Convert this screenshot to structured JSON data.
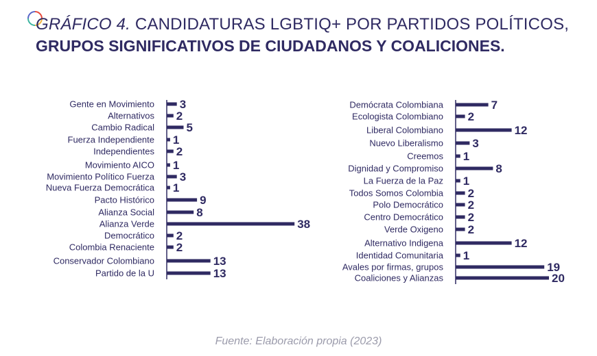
{
  "title": {
    "prefix": "GRÁFICO 4.",
    "line1": "CANDIDATURAS LGBTIQ+ POR PARTIDOS POLÍTICOS,",
    "line2": "GRUPOS SIGNIFICATIVOS DE CIUDADANOS Y COALICIONES."
  },
  "source": "Fuente: Elaboración propia (2023)",
  "colors": {
    "bar": "#2f2a62",
    "text": "#2f2a62",
    "source": "#9b9bab"
  },
  "chart_data": [
    {
      "type": "bar",
      "orientation": "horizontal",
      "categories": [
        "Gente en Movimiento",
        "Alternativos",
        "Cambio Radical",
        "Fuerza Independiente",
        "Independientes",
        "Movimiento AICO",
        "Movimiento Político Fuerza",
        "Nueva Fuerza Democrática",
        "Pacto Histórico",
        "Alianza Social",
        "Alianza Verde",
        "Democrático",
        "Colombia Renaciente",
        "Conservador Colombiano",
        "Partido de la U"
      ],
      "values": [
        3,
        2,
        5,
        1,
        2,
        1,
        3,
        1,
        9,
        8,
        38,
        2,
        2,
        13,
        13
      ],
      "data_labels": true
    },
    {
      "type": "bar",
      "orientation": "horizontal",
      "categories": [
        "Demócrata Colombiana",
        "Ecologista Colombiano",
        "Liberal Colombiano",
        "Nuevo Liberalismo",
        "Creemos",
        "Dignidad y Compromiso",
        "La Fuerza de la Paz",
        "Todos Somos Colombia",
        "Polo Democrático",
        "Centro Democrático",
        "Verde Oxigeno",
        "Alternativo Indigena",
        "Identidad Comunitaria",
        "Avales por firmas, grupos",
        "Coaliciones y Alianzas"
      ],
      "values": [
        7,
        2,
        12,
        3,
        1,
        8,
        1,
        2,
        2,
        2,
        2,
        12,
        1,
        19,
        20
      ],
      "data_labels": true
    }
  ]
}
